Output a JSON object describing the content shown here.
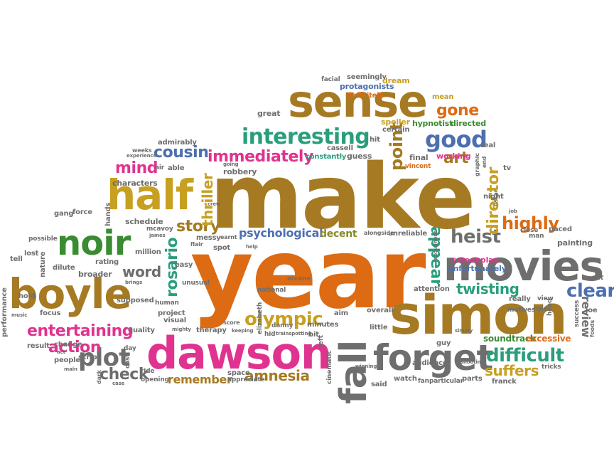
{
  "palette": {
    "brown": "#a57a23",
    "orange": "#dc6b14",
    "pink": "#e0338f",
    "green": "#3a8c32",
    "teal": "#2a9e7c",
    "blue": "#4d6fb0",
    "gray": "#6e6e6e",
    "purple": "#7b4d9c",
    "olive": "#8a8a2a",
    "gold": "#c8a021"
  },
  "words": {
    "make": "make",
    "year": "year",
    "simon": "simon",
    "dawson": "dawson",
    "sense": "sense",
    "boyle": "boyle",
    "movies": "movies",
    "forget": "forget",
    "half": "half",
    "noir": "noir",
    "fall": "fall",
    "interesting": "interesting",
    "good": "good",
    "immediately": "immediately",
    "cousin": "cousin",
    "plot": "plot",
    "entertaining": "entertaining",
    "difficult": "difficult",
    "heist": "heist",
    "olympic": "olympic",
    "amnesia": "amnesia",
    "clear": "clear",
    "action": "action",
    "check": "check",
    "suffers": "suffers",
    "story": "story",
    "highly": "highly",
    "gone": "gone",
    "art": "art",
    "appear": "appear",
    "director": "director",
    "rosario": "rosario",
    "thriller": "thriller",
    "point": "point",
    "mind": "mind",
    "twisting": "twisting",
    "review": "review",
    "remember": "remember",
    "psychological": "psychological",
    "word": "word",
    "decent": "decent",
    "soundtrack": "soundtrack",
    "excessive": "excessive",
    "screenplay": "screenplay",
    "unfortunately": "unfortunately",
    "characters": "characters",
    "hypnotist": "hypnotist",
    "directed": "directed",
    "working": "working",
    "final": "final",
    "guess": "guess",
    "cassell": "cassell",
    "constantly": "constantly",
    "spoiler": "spoiler",
    "certain": "certain",
    "protagonists": "protagonists",
    "definitely": "definitely",
    "seemingly": "seemingly",
    "dream": "dream",
    "mean": "mean",
    "facial": "facial",
    "great": "great",
    "real": "real",
    "hit": "hit",
    "vincent": "vincent",
    "admirably": "admirably",
    "able": "able",
    "air": "air",
    "robbery": "robbery",
    "schedule": "schedule",
    "mcavoy": "mcavoy",
    "force": "force",
    "gang": "gang",
    "hands": "hands",
    "possible": "possible",
    "lost": "lost",
    "tell": "tell",
    "nature": "nature",
    "dilute": "dilute",
    "million": "million",
    "rating": "rating",
    "broader": "broader",
    "messy": "messy",
    "spot": "spot",
    "easy": "easy",
    "unusual": "unusual",
    "arcane": "arcane",
    "elizabeth": "elizabeth",
    "national": "national",
    "minutes": "minutes",
    "bit": "bit",
    "aim": "aim",
    "overall": "overall",
    "little": "little",
    "attention": "attention",
    "audience": "audience",
    "guy": "guy",
    "parts": "parts",
    "watch": "watch",
    "fan": "fan",
    "particular": "particular",
    "franck": "franck",
    "tricks": "tricks",
    "really": "really",
    "view": "view",
    "role": "role",
    "motives": "motives",
    "head": "head",
    "joe": "joe",
    "success": "success",
    "foods": "foods",
    "cut": "cut",
    "painting": "painting",
    "paced": "paced",
    "man": "man",
    "close": "close",
    "night": "night",
    "oscar": "oscar",
    "tv": "tv",
    "graphic": "graphic",
    "end": "end",
    "performance": "performance",
    "hold": "hold",
    "focus": "focus",
    "supposed": "supposed",
    "quality": "quality",
    "result": "result",
    "change": "change",
    "people": "people",
    "script": "script",
    "day": "day",
    "cast": "cast",
    "ride": "ride",
    "opening": "opening",
    "dark": "dark",
    "space": "space",
    "appreciate": "appreciate",
    "said": "said",
    "cinematic": "cinematic",
    "left": "left",
    "hid": "hid",
    "therapy": "therapy",
    "visual": "visual",
    "human": "human",
    "project": "project",
    "unreliable": "unreliable",
    "alongside": "alongside",
    "danny": "danny",
    "earnt": "earnt",
    "sequences": "sequences",
    "weeks": "weeks",
    "experience": "experience",
    "flair": "flair",
    "crew": "crew",
    "going": "going",
    "mighty": "mighty",
    "keeping": "keeping",
    "score": "score",
    "simply": "simply",
    "job": "job",
    "shooting": "shooting",
    "winning": "winning",
    "trainspotting": "trainspotting",
    "james": "james",
    "music": "music",
    "brings": "brings",
    "help": "help",
    "act": "act",
    "main": "main",
    "case": "case"
  }
}
